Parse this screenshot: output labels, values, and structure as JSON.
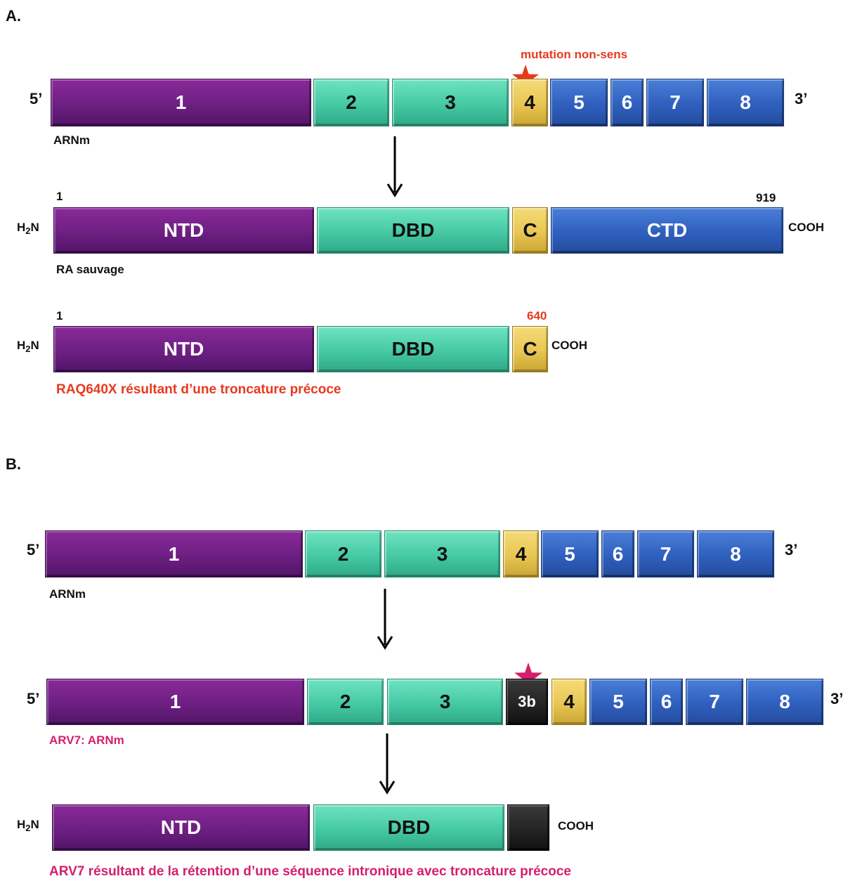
{
  "section_a": {
    "label": "A.",
    "mutation_label": "mutation non-sens",
    "mrna": {
      "five_prime": "5’",
      "three_prime": "3’",
      "caption": "ARNm",
      "exons": [
        "1",
        "2",
        "3",
        "4",
        "5",
        "6",
        "7",
        "8"
      ]
    },
    "wild_type": {
      "n_term_main": "H",
      "n_term_sub": "2",
      "n_term_end": "N",
      "start_num": "1",
      "end_num": "919",
      "c_term": "COOH",
      "domains": [
        "NTD",
        "DBD",
        "C",
        "CTD"
      ],
      "caption": "RA sauvage"
    },
    "truncated": {
      "n_term_main": "H",
      "n_term_sub": "2",
      "n_term_end": "N",
      "start_num": "1",
      "end_num": "640",
      "c_term": "COOH",
      "domains": [
        "NTD",
        "DBD",
        "C"
      ],
      "caption": "RAQ640X résultant d’une troncature précoce"
    }
  },
  "section_b": {
    "label": "B.",
    "mrna": {
      "five_prime": "5’",
      "three_prime": "3’",
      "caption": "ARNm",
      "exons": [
        "1",
        "2",
        "3",
        "4",
        "5",
        "6",
        "7",
        "8"
      ]
    },
    "arv7_mrna": {
      "five_prime": "5’",
      "three_prime": "3’",
      "caption": "ARV7: ARNm",
      "exons": [
        "1",
        "2",
        "3",
        "3b",
        "4",
        "5",
        "6",
        "7",
        "8"
      ]
    },
    "arv7_protein": {
      "n_term_main": "H",
      "n_term_sub": "2",
      "n_term_end": "N",
      "c_term": "COOH",
      "domains": [
        "NTD",
        "DBD"
      ],
      "caption": "ARV7 résultant de la rétention d’une séquence intronique avec troncature précoce"
    }
  },
  "colors": {
    "ntd_exon1": "#6d1f82",
    "dbd_exon2_3": "#45c9a4",
    "c_exon4": "#e8c653",
    "ctd_exon5_8": "#2f5fbe",
    "exon3b": "#222222",
    "mutation_red": "#e8391e",
    "arv7_pink": "#d4206a"
  }
}
